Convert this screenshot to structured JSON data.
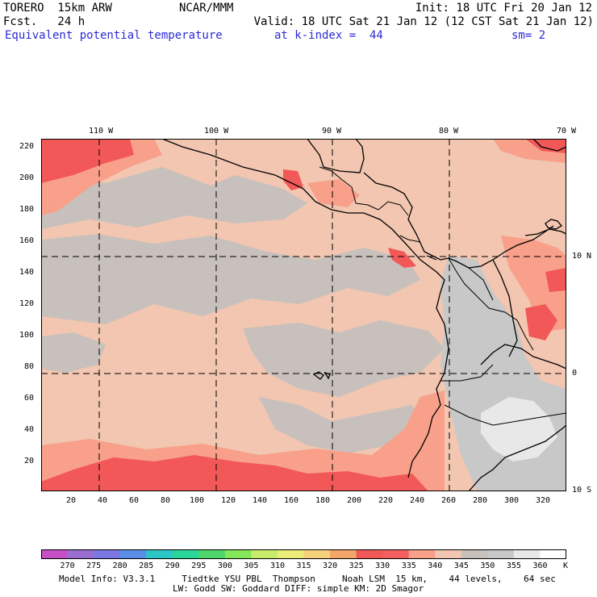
{
  "header": {
    "line1_left": "TORERO  15km ARW",
    "line1_center": "NCAR/MMM",
    "line1_right": "Init: 18 UTC Fri 20 Jan 12",
    "line2_left": "Fcst.   24 h",
    "line2_right": "Valid: 18 UTC Sat 21 Jan 12 (12 CST Sat 21 Jan 12)",
    "field": "Equivalent potential temperature",
    "level": "at k-index =  44",
    "smooth": "sm= 2"
  },
  "map": {
    "lon_labels": [
      "110 W",
      "100 W",
      "90 W",
      "80 W",
      "70 W"
    ],
    "lat_labels": [
      "10 N",
      "0",
      "10 S"
    ],
    "y_ticks": [
      "220",
      "200",
      "180",
      "160",
      "140",
      "120",
      "100",
      "80",
      "60",
      "40",
      "20"
    ],
    "x_ticks": [
      "20",
      "40",
      "60",
      "80",
      "100",
      "120",
      "140",
      "160",
      "180",
      "200",
      "220",
      "240",
      "260",
      "280",
      "300",
      "320"
    ]
  },
  "colorbar": {
    "labels": [
      "270",
      "275",
      "280",
      "285",
      "290",
      "295",
      "300",
      "305",
      "310",
      "315",
      "320",
      "325",
      "330",
      "335",
      "340",
      "345",
      "350",
      "355",
      "360"
    ],
    "unit": "K",
    "colors": [
      "#c64fc6",
      "#9a6ed0",
      "#7b78e6",
      "#5a8ee6",
      "#2cc6c6",
      "#2ad69a",
      "#4fd66a",
      "#86e65a",
      "#c6ec6a",
      "#ecec7a",
      "#f6d27a",
      "#f4a66a",
      "#f25858",
      "#f46060",
      "#f8a08a",
      "#f2c6b0",
      "#c8c0bc",
      "#c8c8c8",
      "#e8e8e8",
      "#ffffff"
    ]
  },
  "footer": {
    "line1": "Model Info: V3.3.1     Tiedtke YSU PBL  Thompson     Noah LSM  15 km,    44 levels,    64 sec",
    "line2": "LW: Godd SW: Goddard DIFF: simple KM: 2D Smagor"
  }
}
